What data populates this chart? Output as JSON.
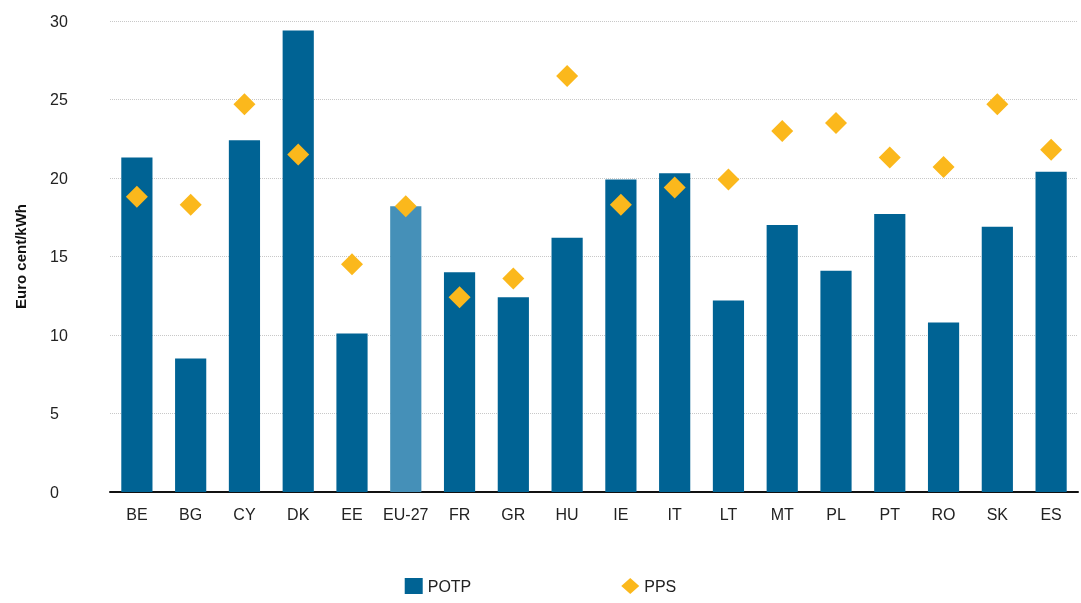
{
  "chart_data": {
    "type": "bar",
    "ylabel": "Euro cent/kWh",
    "categories": [
      "BE",
      "BG",
      "CY",
      "DK",
      "EE",
      "EU-27",
      "FR",
      "GR",
      "HU",
      "IE",
      "IT",
      "LT",
      "MT",
      "PL",
      "PT",
      "RO",
      "SK",
      "ES"
    ],
    "series": [
      {
        "name": "POTP",
        "color": "#006394",
        "colors": [
          "#006394",
          "#006394",
          "#006394",
          "#006394",
          "#006394",
          "#4590b8",
          "#006394",
          "#006394",
          "#006394",
          "#006394",
          "#006394",
          "#006394",
          "#006394",
          "#006394",
          "#006394",
          "#006394",
          "#006394",
          "#006394"
        ],
        "values": [
          21.3,
          8.5,
          22.4,
          29.4,
          10.1,
          18.2,
          14.0,
          12.4,
          16.2,
          19.9,
          20.3,
          12.2,
          17.0,
          14.1,
          17.7,
          10.8,
          16.9,
          20.4
        ]
      },
      {
        "name": "PPS",
        "type": "scatter",
        "marker": "diamond",
        "color": "#fbb81c",
        "values": [
          18.8,
          18.3,
          24.7,
          21.5,
          14.5,
          18.2,
          12.4,
          13.6,
          26.5,
          18.3,
          19.4,
          19.9,
          23.0,
          23.5,
          21.3,
          20.7,
          24.7,
          21.8
        ]
      }
    ],
    "ylim": [
      0,
      30
    ],
    "yticks": [
      0,
      5,
      10,
      15,
      20,
      25,
      30
    ],
    "grid": "y",
    "legend": "bottom"
  }
}
